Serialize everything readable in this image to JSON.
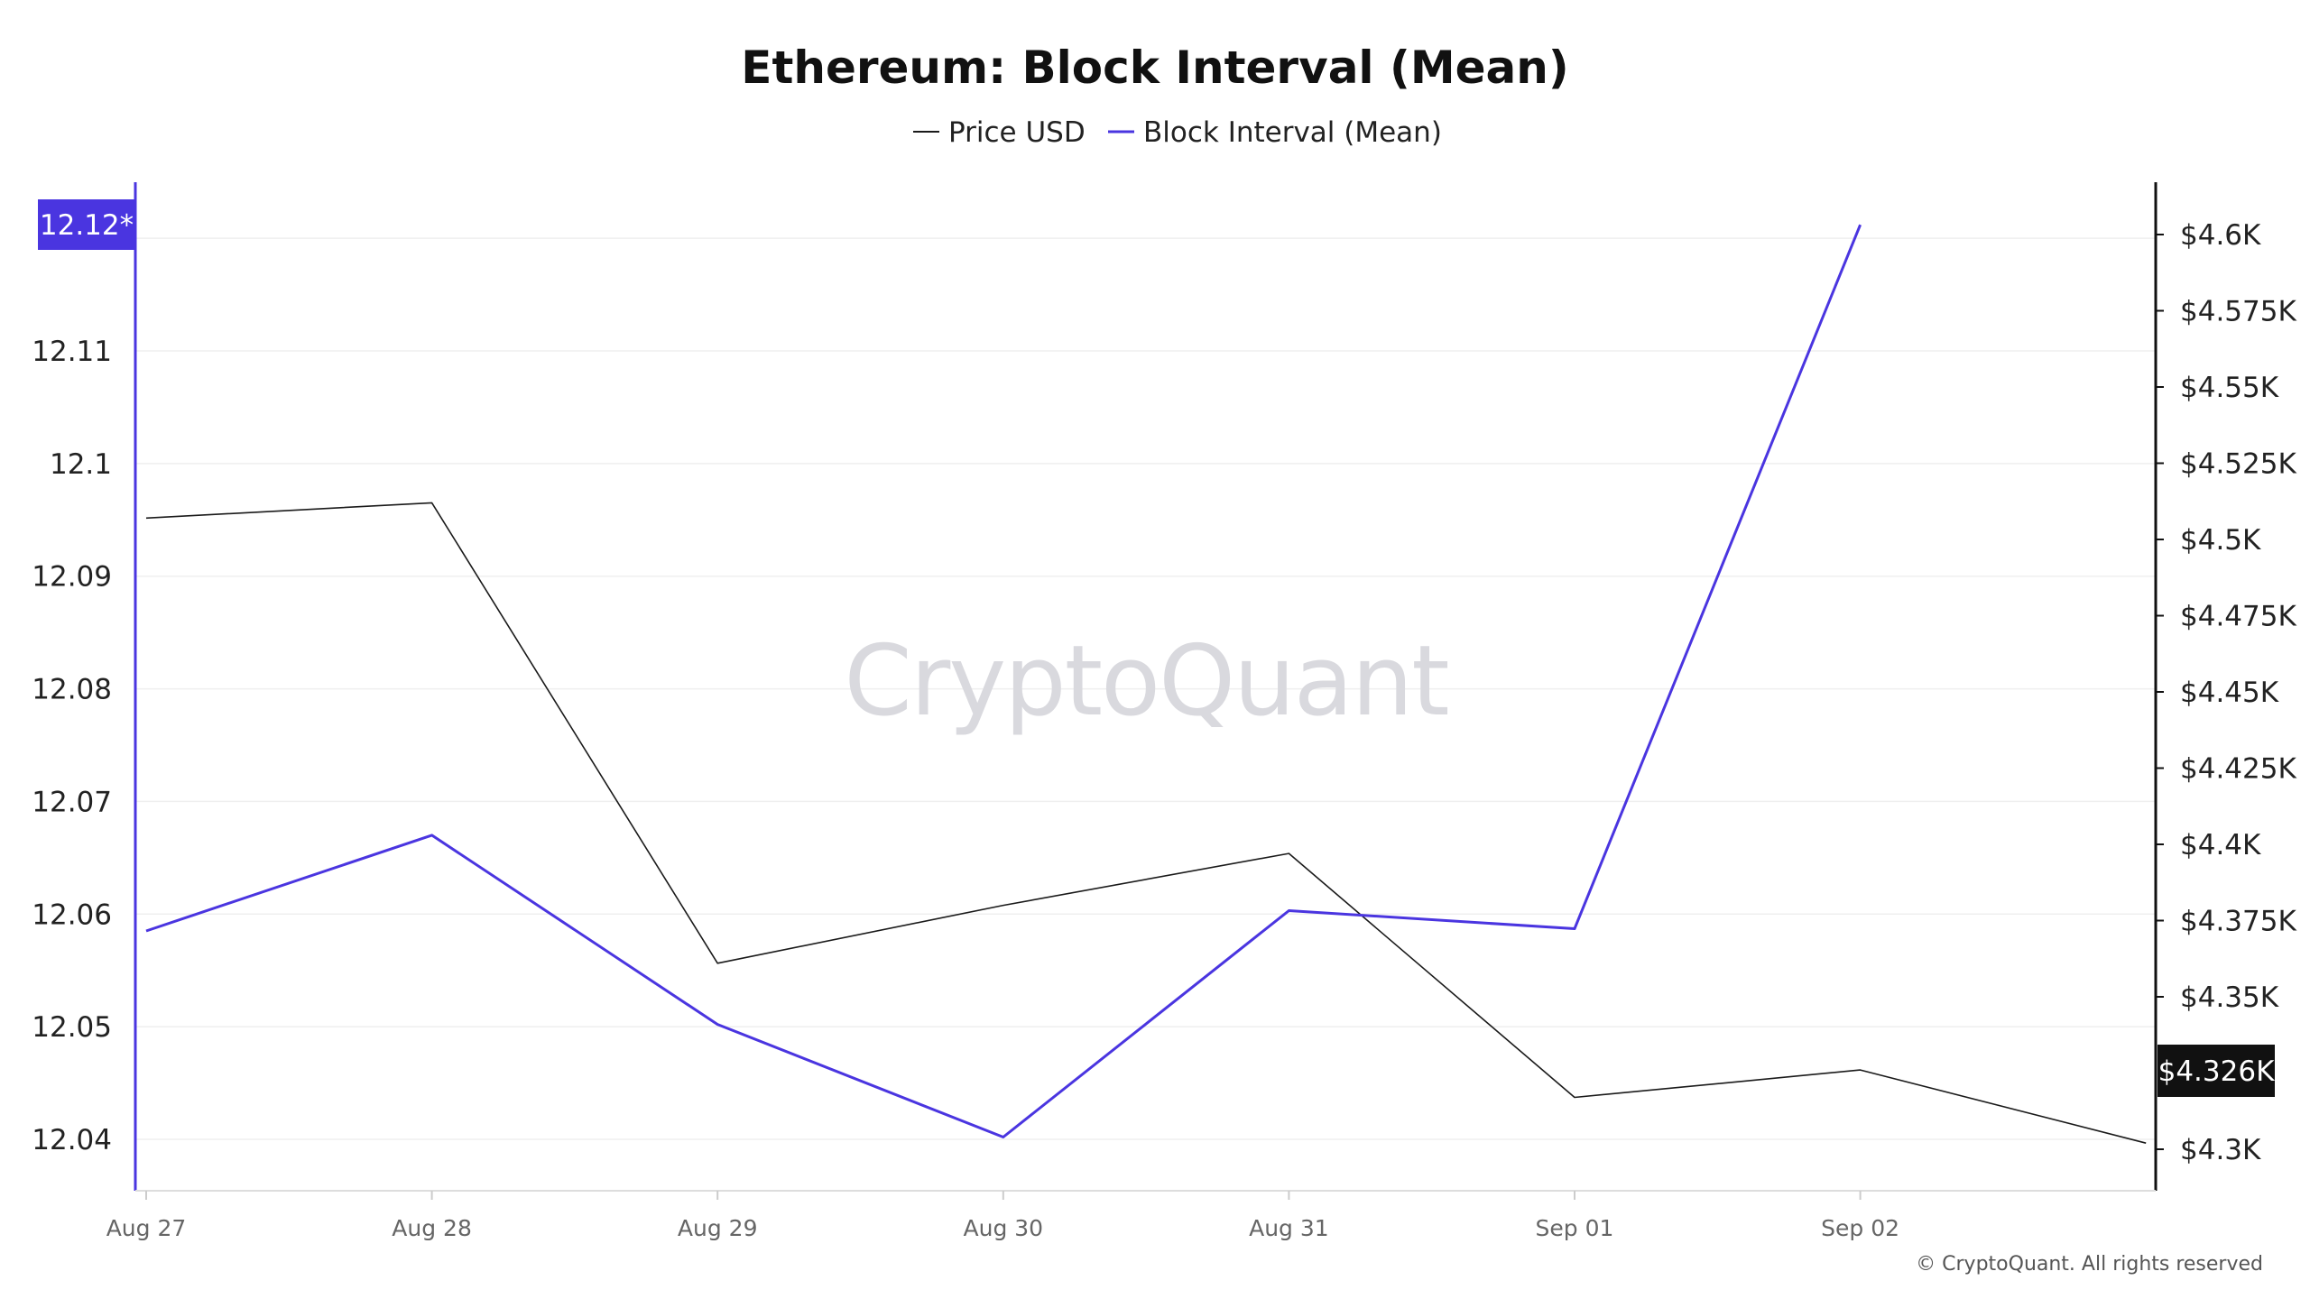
{
  "colors": {
    "price_line": "#1a1a1a",
    "block_line": "#4a35e0",
    "left_axis": "#4a35e0",
    "right_axis": "#111111",
    "gridline": "#efefef",
    "left_badge_bg": "#4a35e0",
    "right_badge_bg": "#111111",
    "watermark": "#d9d9de"
  },
  "watermark": "CryptoQuant",
  "copyright": "© CryptoQuant. All rights reserved",
  "chart_data": {
    "type": "line",
    "title": "Ethereum: Block Interval (Mean)",
    "categories": [
      "Aug 27",
      "Aug 28",
      "Aug 29",
      "Aug 30",
      "Aug 31",
      "Sep 01",
      "Sep 02",
      ""
    ],
    "series": [
      {
        "name": "Price USD",
        "axis": "right",
        "values": [
          4507,
          4512,
          4361,
          4380,
          4397,
          4317,
          4326,
          4302
        ]
      },
      {
        "name": "Block Interval (Mean)",
        "axis": "left",
        "values": [
          12.0585,
          12.067,
          12.0502,
          12.0402,
          12.0603,
          12.0587,
          12.1212,
          null
        ]
      }
    ],
    "left_axis": {
      "ticks": [
        "12.04",
        "12.05",
        "12.06",
        "12.07",
        "12.08",
        "12.09",
        "12.1",
        "12.11"
      ],
      "tick_values": [
        12.04,
        12.05,
        12.06,
        12.07,
        12.08,
        12.09,
        12.1,
        12.11
      ],
      "current_label": "12.12*",
      "current_value": 12.12
    },
    "right_axis": {
      "ticks": [
        "$4.3K",
        "$4.35K",
        "$4.375K",
        "$4.4K",
        "$4.425K",
        "$4.45K",
        "$4.475K",
        "$4.5K",
        "$4.525K",
        "$4.55K",
        "$4.575K",
        "$4.6K"
      ],
      "tick_values": [
        4300,
        4350,
        4375,
        4400,
        4425,
        4450,
        4475,
        4500,
        4525,
        4550,
        4575,
        4600
      ],
      "current_label": "$4.326K",
      "current_value": 4326
    },
    "legend_position": "top-center",
    "grid": true
  }
}
